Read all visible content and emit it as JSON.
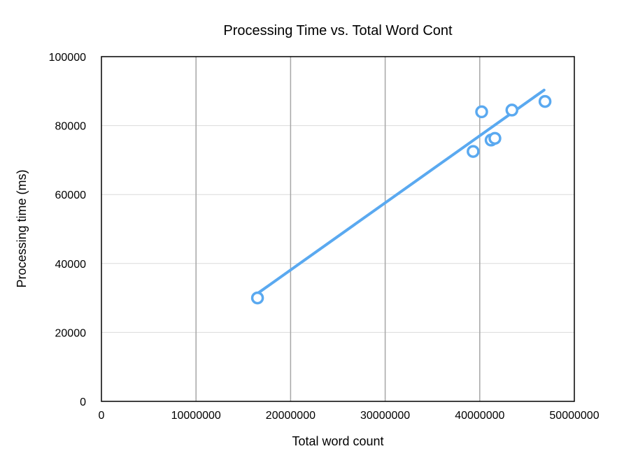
{
  "chart_data": {
    "type": "scatter",
    "title": "Processing Time vs. Total Word Cont",
    "xlabel": "Total word count",
    "ylabel": "Processing time (ms)",
    "xlim": [
      0,
      50000000
    ],
    "ylim": [
      0,
      100000
    ],
    "x_ticks": [
      0,
      10000000,
      20000000,
      30000000,
      40000000,
      50000000
    ],
    "x_tick_labels": [
      "0",
      "10000000",
      "20000000",
      "30000000",
      "40000000",
      "50000000"
    ],
    "y_ticks": [
      0,
      20000,
      40000,
      60000,
      80000,
      100000
    ],
    "y_tick_labels": [
      "0",
      "20000",
      "40000",
      "60000",
      "80000",
      "100000"
    ],
    "grid": {
      "vertical": true,
      "horizontal": true
    },
    "legend": "none",
    "series": [
      {
        "points": [
          {
            "x": 16500000,
            "y": 30000
          },
          {
            "x": 39300000,
            "y": 72500
          },
          {
            "x": 40200000,
            "y": 84000
          },
          {
            "x": 41200000,
            "y": 75800
          },
          {
            "x": 41600000,
            "y": 76300
          },
          {
            "x": 43400000,
            "y": 84500
          },
          {
            "x": 46900000,
            "y": 87000
          }
        ]
      }
    ],
    "trendline": {
      "x": [
        16500000,
        46800000
      ],
      "y": [
        31300,
        90300
      ]
    },
    "colors": {
      "series": "#5aa9f0",
      "vertical_grid": "#a6a6a6",
      "horizontal_grid": "#dcdcdc",
      "frame": "#000000"
    }
  }
}
